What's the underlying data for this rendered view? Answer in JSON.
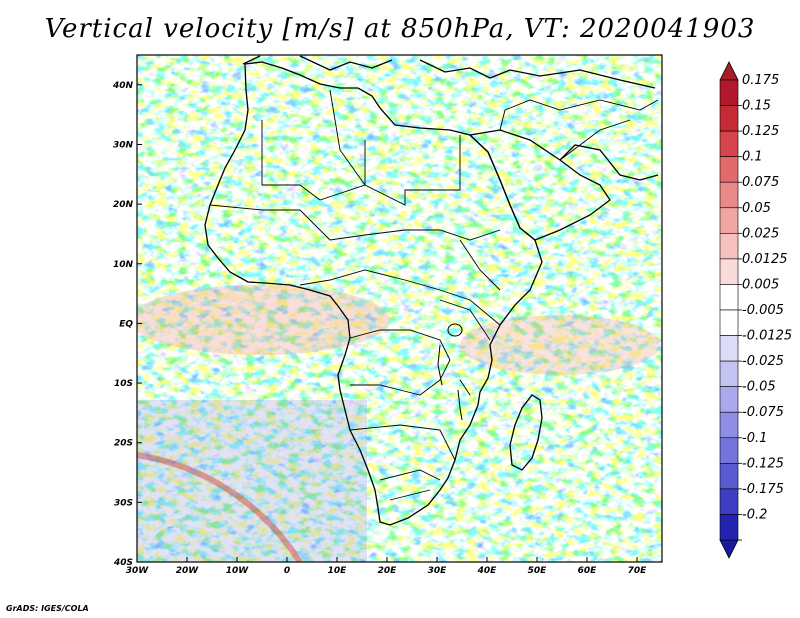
{
  "title": "Vertical velocity [m/s] at 850hPa, VT: 2020041903",
  "credit": "GrADS: IGES/COLA",
  "map": {
    "lon_range": [
      -30,
      75
    ],
    "lat_range": [
      -40,
      45
    ],
    "lon_ticks": [
      {
        "value": -30,
        "label": "30W"
      },
      {
        "value": -20,
        "label": "20W"
      },
      {
        "value": -10,
        "label": "10W"
      },
      {
        "value": 0,
        "label": "0"
      },
      {
        "value": 10,
        "label": "10E"
      },
      {
        "value": 20,
        "label": "20E"
      },
      {
        "value": 30,
        "label": "30E"
      },
      {
        "value": 40,
        "label": "40E"
      },
      {
        "value": 50,
        "label": "50E"
      },
      {
        "value": 60,
        "label": "60E"
      },
      {
        "value": 70,
        "label": "70E"
      }
    ],
    "lat_ticks": [
      {
        "value": 40,
        "label": "40N"
      },
      {
        "value": 30,
        "label": "30N"
      },
      {
        "value": 20,
        "label": "20N"
      },
      {
        "value": 10,
        "label": "10N"
      },
      {
        "value": 0,
        "label": "EQ"
      },
      {
        "value": -10,
        "label": "10S"
      },
      {
        "value": -20,
        "label": "20S"
      },
      {
        "value": -30,
        "label": "30S"
      },
      {
        "value": -40,
        "label": "40S"
      }
    ]
  },
  "colorbar": {
    "levels": [
      {
        "label": "0.175",
        "color": "#b2182b"
      },
      {
        "label": "0.15",
        "color": "#c62a35"
      },
      {
        "label": "0.125",
        "color": "#d7454c"
      },
      {
        "label": "0.1",
        "color": "#e26a6a"
      },
      {
        "label": "0.075",
        "color": "#ea8a88"
      },
      {
        "label": "0.05",
        "color": "#f0a6a3"
      },
      {
        "label": "0.025",
        "color": "#f6c2bf"
      },
      {
        "label": "0.0125",
        "color": "#fadbd9"
      },
      {
        "label": "0.005",
        "color": "#ffffff"
      },
      {
        "label": "-0.005",
        "color": "#ffffff"
      },
      {
        "label": "-0.0125",
        "color": "#dcdcf8"
      },
      {
        "label": "-0.025",
        "color": "#c4c4f2"
      },
      {
        "label": "-0.05",
        "color": "#a9a9ec"
      },
      {
        "label": "-0.075",
        "color": "#8e8ee4"
      },
      {
        "label": "-0.1",
        "color": "#7474dc"
      },
      {
        "label": "-0.125",
        "color": "#5a5ad2"
      },
      {
        "label": "-0.175",
        "color": "#3e3ec4"
      },
      {
        "label": "-0.2",
        "color": "#2424b0"
      }
    ],
    "top_color": "#a51c24",
    "bottom_color": "#1a1aa0"
  }
}
